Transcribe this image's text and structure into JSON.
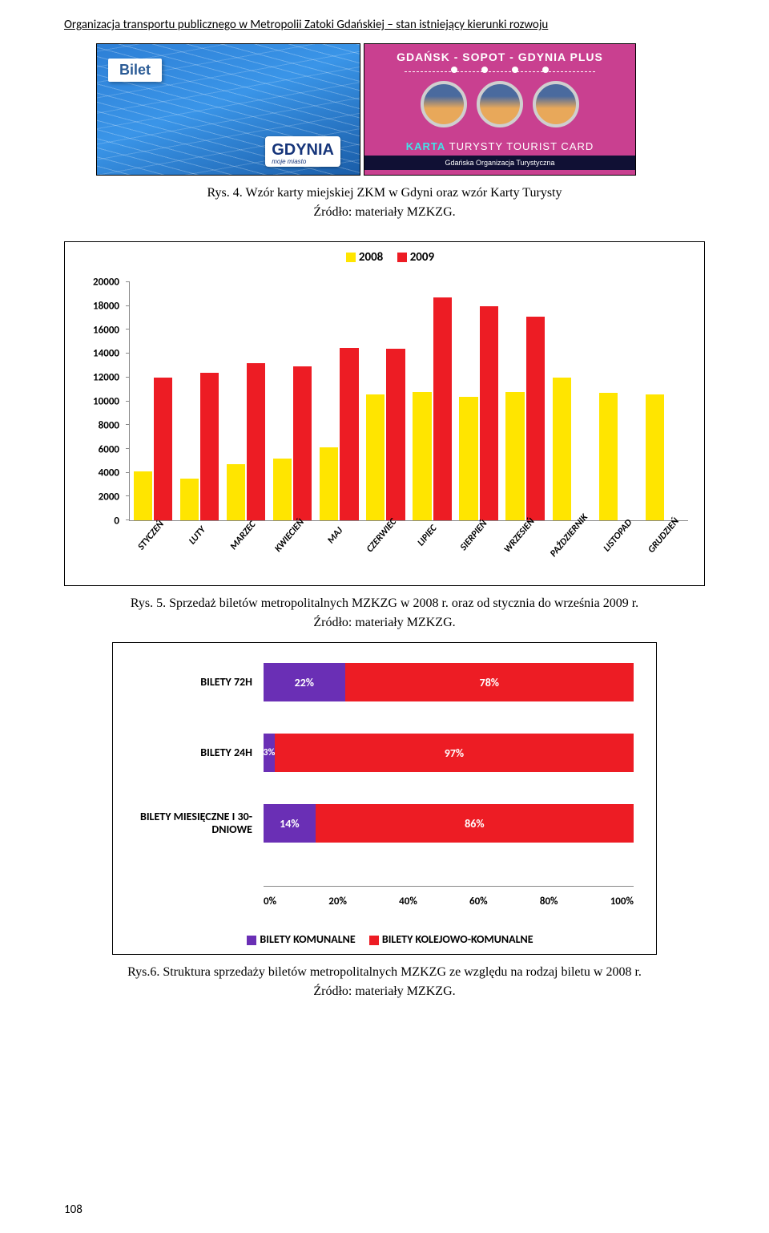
{
  "header": "Organizacja transportu publicznego w Metropolii Zatoki Gdańskiej – stan istniejący kierunki rozwoju",
  "promo": {
    "bilet": "Bilet",
    "gdynia": "GDYNIA",
    "gdynia_sub": "moje miasto",
    "tourist_top": "GDAŃSK - SOPOT - GDYNIA  PLUS",
    "karta_prefix": "KARTA",
    "karta_rest": " TURYSTY  TOURIST CARD",
    "karta_sub": "Gdańska Organizacja Turystyczna"
  },
  "fig4_caption_line1": "Rys. 4. Wzór karty miejskiej ZKM w Gdyni oraz wzór Karty Turysty",
  "fig4_caption_line2": "Źródło: materiały MZKZG.",
  "chart1": {
    "type": "bar-grouped",
    "series": [
      {
        "name": "2008",
        "color": "#ffe500"
      },
      {
        "name": "2009",
        "color": "#ed1c24"
      }
    ],
    "categories": [
      "STYCZEŃ",
      "LUTY",
      "MARZEC",
      "KWIECIEŃ",
      "MAJ",
      "CZERWIEC",
      "LIPIEC",
      "SIERPIEŃ",
      "WRZESIEŃ",
      "PAŹDZIERNIK",
      "LISTOPAD",
      "GRUDZIEŃ"
    ],
    "values_2008": [
      4100,
      3500,
      4700,
      5200,
      6100,
      10600,
      10800,
      10400,
      10800,
      12000,
      10700,
      10600
    ],
    "values_2009": [
      12000,
      12400,
      13200,
      12900,
      14500,
      14400,
      18700,
      18000,
      17100,
      0,
      0,
      0
    ],
    "ymax": 20000,
    "ytick_step": 2000,
    "yticks": [
      "0",
      "2000",
      "4000",
      "6000",
      "8000",
      "10000",
      "12000",
      "14000",
      "16000",
      "18000",
      "20000"
    ],
    "axis_color": "#888888",
    "label_font": "Calibri",
    "label_fontsize": 13
  },
  "fig5_caption_line1": "Rys. 5. Sprzedaż biletów metropolitalnych MZKZG w 2008 r. oraz od stycznia do września 2009 r.",
  "fig5_caption_line2": "Źródło: materiały MZKZG.",
  "chart2": {
    "type": "bar-stacked-horizontal",
    "series_colors": {
      "komunalne": "#6a2fb5",
      "kolejowo": "#ed1c24"
    },
    "rows": [
      {
        "label": "BILETY 72H",
        "komunalne": 22,
        "kolejowo": 78
      },
      {
        "label": "BILETY 24H",
        "komunalne": 3,
        "kolejowo": 97
      },
      {
        "label": "BILETY MIESIĘCZNE I 30-DNIOWE",
        "komunalne": 14,
        "kolejowo": 86
      }
    ],
    "xticks": [
      "0%",
      "20%",
      "40%",
      "60%",
      "80%",
      "100%"
    ],
    "legend": {
      "komunalne": "BILETY KOMUNALNE",
      "kolejowo": "BILETY KOLEJOWO-KOMUNALNE"
    }
  },
  "fig6_caption_line1": "Rys.6. Struktura sprzedaży biletów metropolitalnych MZKZG ze względu na rodzaj biletu w 2008 r.",
  "fig6_caption_line2": "Źródło: materiały MZKZG.",
  "page_number": "108"
}
